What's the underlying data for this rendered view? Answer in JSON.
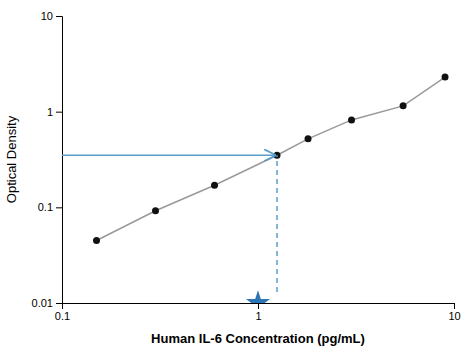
{
  "chart_data": {
    "type": "line",
    "xlabel": "Human IL-6 Concentration (pg/mL)",
    "ylabel": "Optical Density",
    "log": true,
    "xlim": [
      0.1,
      10
    ],
    "ylim": [
      0.01,
      10
    ],
    "xticks": [
      0.1,
      1,
      10
    ],
    "yticks": [
      0.01,
      0.1,
      1,
      10
    ],
    "series": [
      {
        "type": "line",
        "color": "#999999",
        "line_style": "solid",
        "x": [
          0.15,
          0.3,
          0.6,
          1.25,
          1.8,
          3.0,
          5.5,
          9.0
        ],
        "values": [
          0.045,
          0.092,
          0.17,
          0.35,
          0.52,
          0.82,
          1.15,
          2.3
        ]
      },
      {
        "type": "scatter",
        "color": "#111111",
        "marker": "circle",
        "x": [
          0.15,
          0.3,
          0.6,
          1.25,
          1.8,
          3.0,
          5.5,
          9.0
        ],
        "values": [
          0.045,
          0.092,
          0.17,
          0.35,
          0.52,
          0.82,
          1.15,
          2.3
        ]
      },
      {
        "type": "arrow",
        "color": "#5b9ec9",
        "line_style": "solid",
        "x": [
          0.1,
          1.22
        ],
        "values": [
          0.35,
          0.35
        ]
      },
      {
        "type": "line",
        "color": "#5b9ec9",
        "line_style": "dashed",
        "x": [
          1.25,
          1.25
        ],
        "values": [
          0.013,
          0.35
        ]
      },
      {
        "type": "scatter",
        "color": "#2e75b6",
        "marker": "star",
        "x": [
          1.0
        ],
        "values": [
          0.01
        ]
      }
    ]
  }
}
